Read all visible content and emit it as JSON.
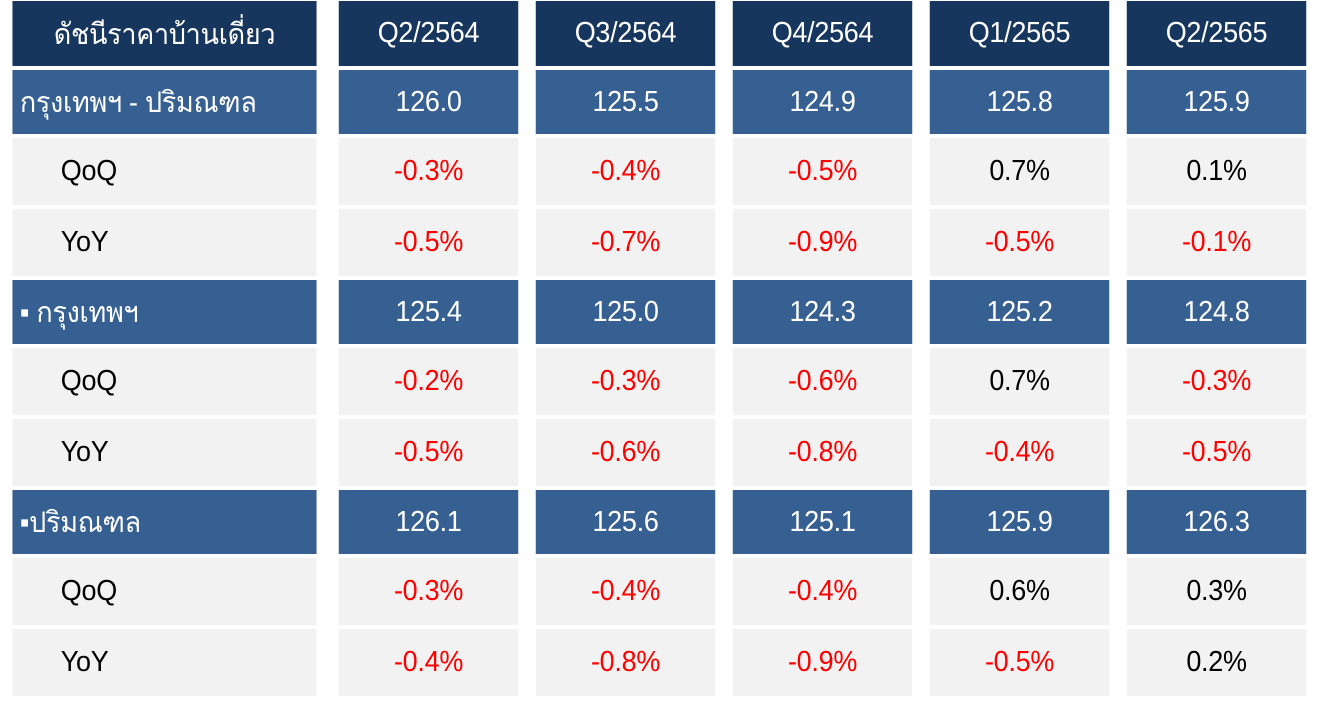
{
  "header": {
    "title": "ดัชนีราคาบ้านเดี่ยว",
    "periods": [
      "Q2/2564",
      "Q3/2564",
      "Q4/2564",
      "Q1/2565",
      "Q2/2565"
    ]
  },
  "sections": [
    {
      "label": "กรุงเทพฯ - ปริมณฑล",
      "index": [
        "126.0",
        "125.5",
        "124.9",
        "125.8",
        "125.9"
      ],
      "qoq_label": "QoQ",
      "qoq": [
        "-0.3%",
        "-0.4%",
        "-0.5%",
        "0.7%",
        "0.1%"
      ],
      "yoy_label": "YoY",
      "yoy": [
        "-0.5%",
        "-0.7%",
        "-0.9%",
        "-0.5%",
        "-0.1%"
      ]
    },
    {
      "label": "▪ กรุงเทพฯ",
      "index": [
        "125.4",
        "125.0",
        "124.3",
        "125.2",
        "124.8"
      ],
      "qoq_label": "QoQ",
      "qoq": [
        "-0.2%",
        "-0.3%",
        "-0.6%",
        "0.7%",
        "-0.3%"
      ],
      "yoy_label": "YoY",
      "yoy": [
        "-0.5%",
        "-0.6%",
        "-0.8%",
        "-0.4%",
        "-0.5%"
      ]
    },
    {
      "label": "▪ปริมณฑล",
      "index": [
        "126.1",
        "125.6",
        "125.1",
        "125.9",
        "126.3"
      ],
      "qoq_label": "QoQ",
      "qoq": [
        "-0.3%",
        "-0.4%",
        "-0.4%",
        "0.6%",
        "0.3%"
      ],
      "yoy_label": "YoY",
      "yoy": [
        "-0.4%",
        "-0.8%",
        "-0.9%",
        "-0.5%",
        "0.2%"
      ]
    }
  ],
  "colors": {
    "header_bg": "#17365d",
    "section_bg": "#366092",
    "row_bg": "#f2f2f2",
    "negative_text": "#ff0000",
    "positive_text": "#000000"
  }
}
